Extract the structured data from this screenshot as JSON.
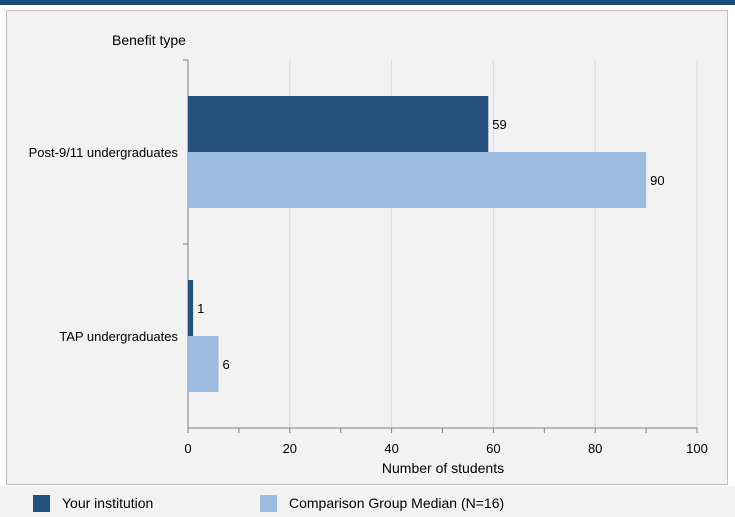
{
  "chart_data": {
    "type": "bar",
    "orientation": "horizontal",
    "title": "",
    "category_axis_title": "Benefit type",
    "xlabel": "Number of students",
    "categories": [
      "Post-9/11 undergraduates",
      "TAP undergraduates"
    ],
    "series": [
      {
        "name": "Your institution",
        "color": "#254f7c",
        "values": [
          59,
          1
        ]
      },
      {
        "name": "Comparison Group Median (N=16)",
        "color": "#9dbbdf",
        "values": [
          90,
          6
        ]
      }
    ],
    "xlim": [
      0,
      100
    ],
    "xticks": [
      0,
      20,
      40,
      60,
      80,
      100
    ],
    "grid": true,
    "legend_position": "bottom"
  },
  "colors": {
    "accent": "#1f4e79",
    "background": "#f2f2f2",
    "grid": "#d9d9d9"
  }
}
